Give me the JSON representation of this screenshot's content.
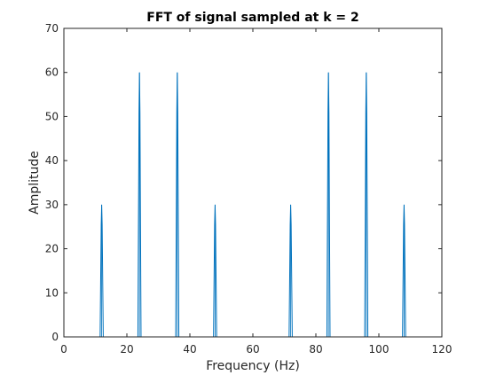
{
  "chart_data": {
    "type": "line",
    "title": "FFT of signal sampled at k = 2",
    "xlabel": "Frequency (Hz)",
    "ylabel": "Amplitude",
    "xlim": [
      0,
      120
    ],
    "ylim": [
      0,
      70
    ],
    "xticks": [
      "0",
      "20",
      "40",
      "60",
      "80",
      "100",
      "120"
    ],
    "yticks": [
      "0",
      "10",
      "20",
      "30",
      "40",
      "50",
      "60",
      "70"
    ],
    "grid": false,
    "series": [
      {
        "color": "#0072BD",
        "peaks": [
          {
            "x": 12,
            "y": 30
          },
          {
            "x": 24,
            "y": 60
          },
          {
            "x": 36,
            "y": 60
          },
          {
            "x": 48,
            "y": 30
          },
          {
            "x": 72,
            "y": 30
          },
          {
            "x": 84,
            "y": 60
          },
          {
            "x": 96,
            "y": 60
          },
          {
            "x": 108,
            "y": 30
          }
        ]
      }
    ]
  }
}
